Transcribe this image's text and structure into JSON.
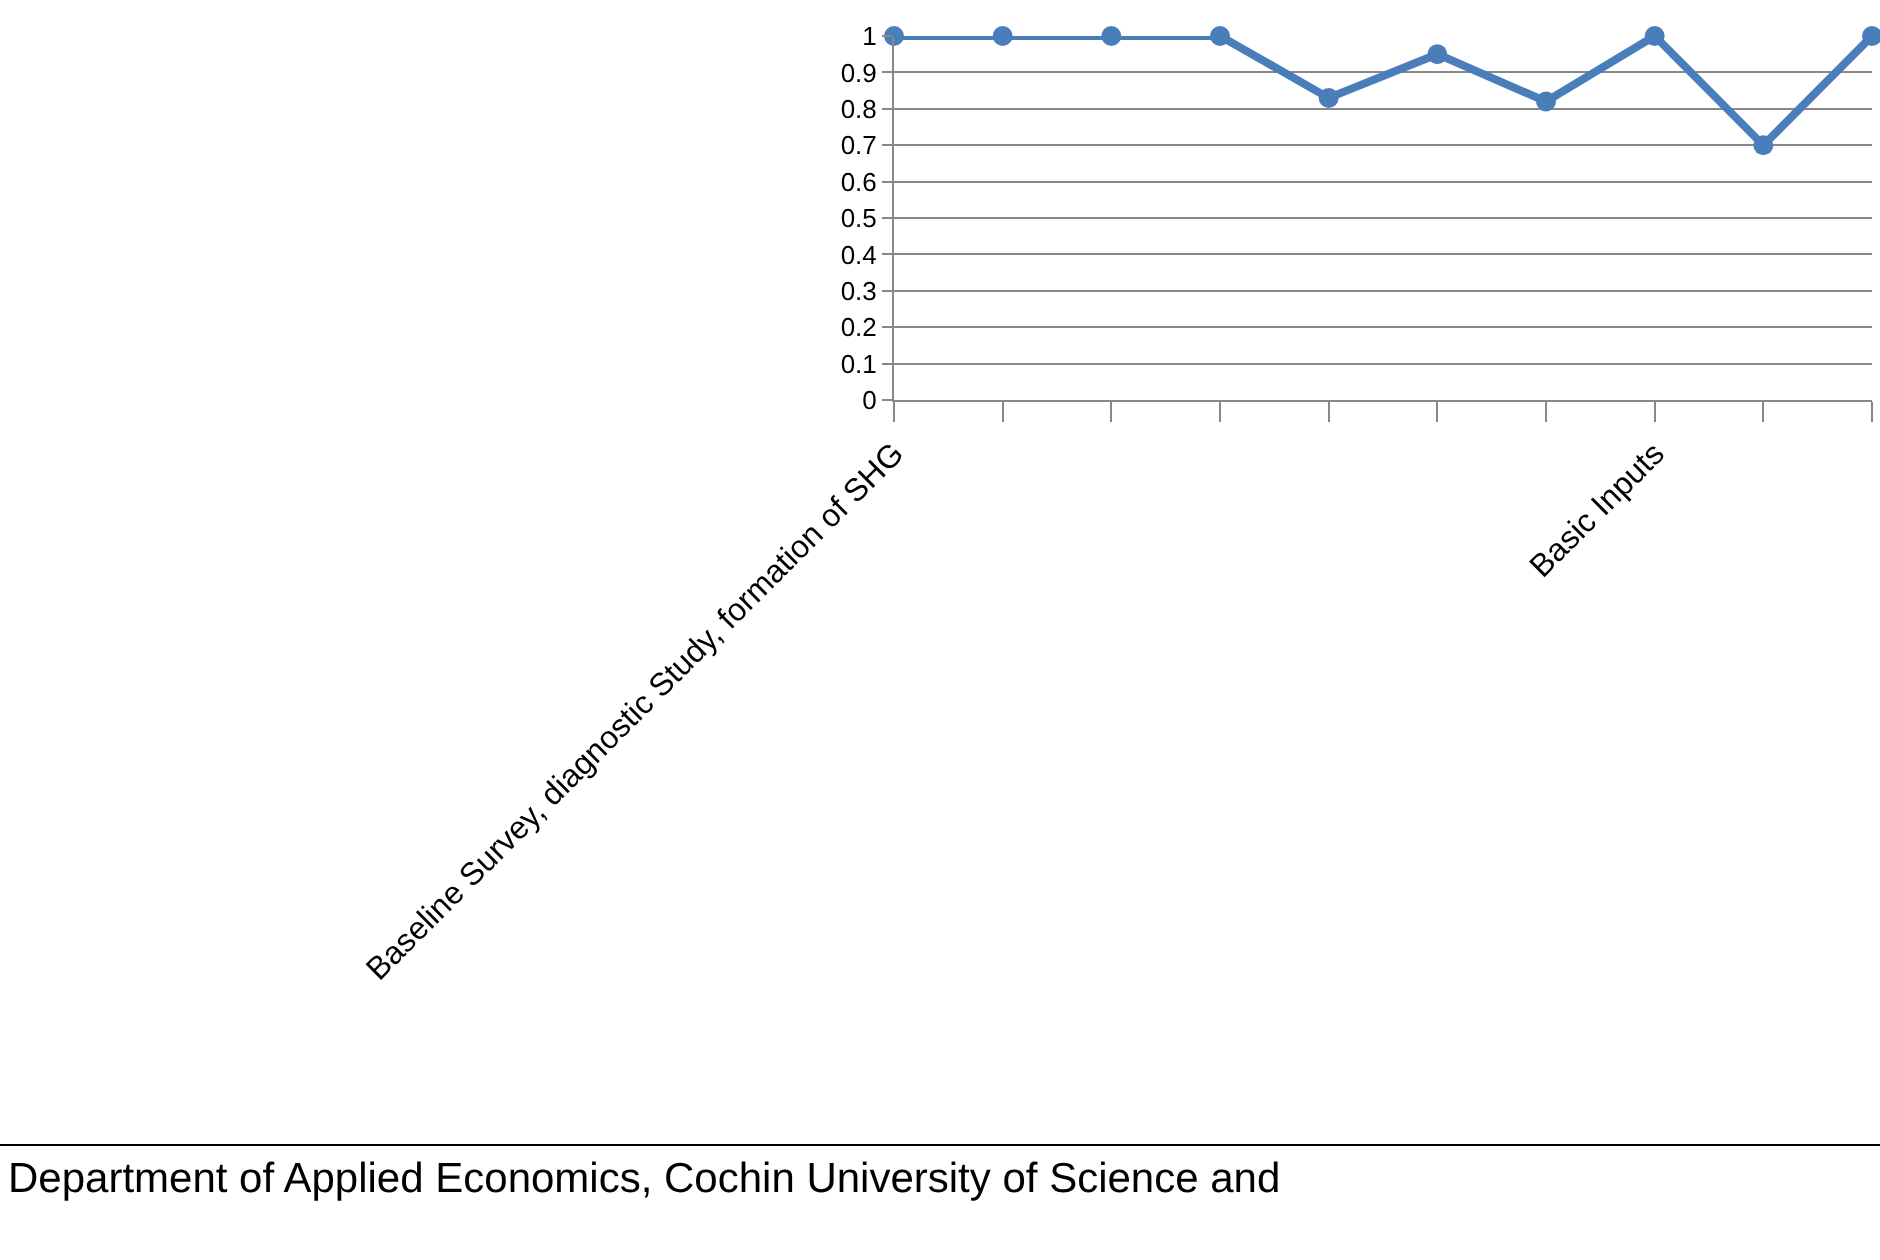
{
  "chart_data": {
    "type": "line",
    "categories": [
      "Baseline Survey, diagnostic Study, formation of SHG",
      null,
      null,
      null,
      null,
      null,
      null,
      "Basic Inputs",
      null,
      null
    ],
    "series": [
      {
        "color": "#4a7ebb",
        "values": [
          1,
          1,
          1,
          1,
          0.83,
          0.95,
          0.82,
          1,
          0.7,
          1
        ]
      }
    ],
    "ylim": [
      0,
      1
    ],
    "yticks": [
      0,
      0.1,
      0.2,
      0.3,
      0.4,
      0.5,
      0.6,
      0.7,
      0.8,
      0.9,
      1
    ],
    "grid": "y",
    "legend": false,
    "marker": "circle",
    "line_style": "solid",
    "annotations": [
      "Department of Applied Economics, Cochin University of Science and"
    ]
  }
}
